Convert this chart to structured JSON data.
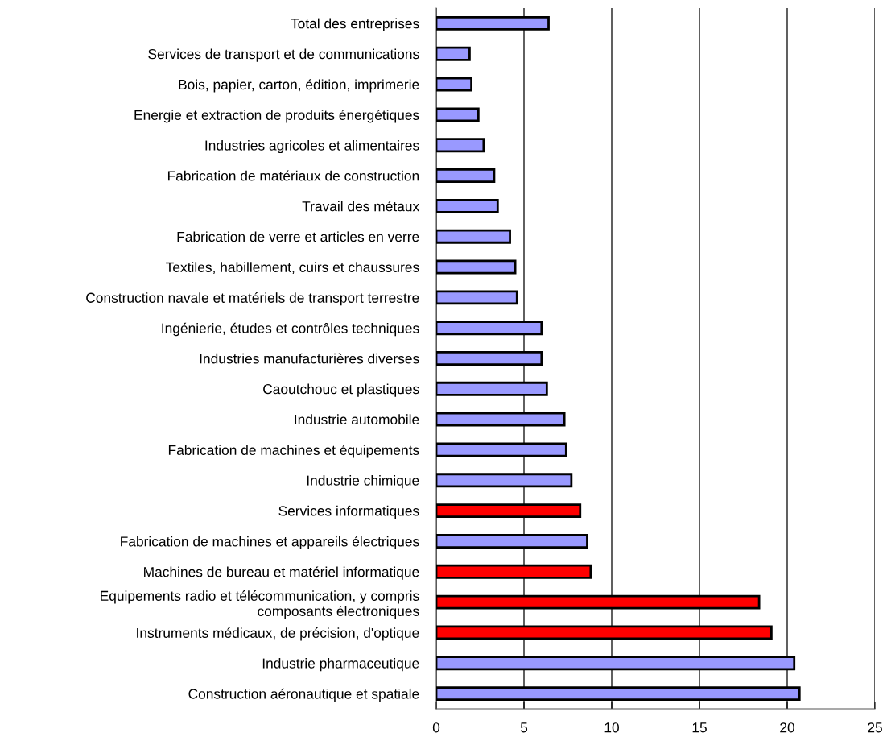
{
  "chart_data": {
    "type": "bar",
    "orientation": "horizontal",
    "categories": [
      "Total des entreprises",
      "Services de transport et de communications",
      "Bois, papier, carton, édition, imprimerie",
      "Energie et extraction de produits énergétiques",
      "Industries agricoles et alimentaires",
      "Fabrication de matériaux de construction",
      "Travail des métaux",
      "Fabrication de verre et articles en verre",
      "Textiles, habillement, cuirs et chaussures",
      "Construction navale et matériels de transport terrestre",
      "Ingénierie, études et contrôles techniques",
      "Industries manufacturières diverses",
      "Caoutchouc et plastiques",
      "Industrie automobile",
      "Fabrication de machines et équipements",
      "Industrie chimique",
      "Services informatiques",
      "Fabrication de machines et appareils électriques",
      "Machines de bureau et matériel informatique",
      "Equipements radio et télécommunication, y compris\ncomposants électroniques",
      "Instruments médicaux, de précision, d'optique",
      "Industrie pharmaceutique",
      "Construction aéronautique et spatiale"
    ],
    "values": [
      6.4,
      1.9,
      2.0,
      2.4,
      2.7,
      3.3,
      3.5,
      4.2,
      4.5,
      4.6,
      6.0,
      6.0,
      6.3,
      7.3,
      7.4,
      7.7,
      8.2,
      8.6,
      8.8,
      18.4,
      19.1,
      20.4,
      20.7
    ],
    "colors": [
      "#9999ff",
      "#9999ff",
      "#9999ff",
      "#9999ff",
      "#9999ff",
      "#9999ff",
      "#9999ff",
      "#9999ff",
      "#9999ff",
      "#9999ff",
      "#9999ff",
      "#9999ff",
      "#9999ff",
      "#9999ff",
      "#9999ff",
      "#9999ff",
      "#ff0000",
      "#9999ff",
      "#ff0000",
      "#ff0000",
      "#ff0000",
      "#9999ff",
      "#9999ff"
    ],
    "xlim": [
      0,
      25
    ],
    "xticks": [
      0,
      5,
      10,
      15,
      20,
      25
    ],
    "grid": "x",
    "legend": false
  }
}
